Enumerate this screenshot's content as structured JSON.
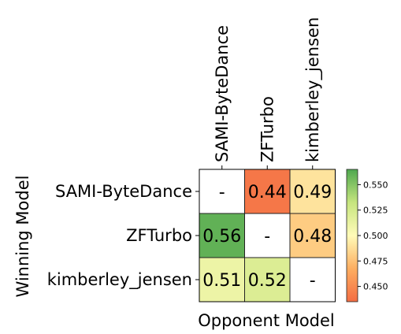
{
  "chart_data": {
    "type": "heatmap",
    "xlabel": "Opponent Model",
    "ylabel": "Winning Model",
    "x_categories": [
      "SAMI-ByteDance",
      "ZFTurbo",
      "kimberley_jensen"
    ],
    "y_categories": [
      "SAMI-ByteDance",
      "ZFTurbo",
      "kimberley_jensen"
    ],
    "values": [
      [
        null,
        0.44,
        0.49
      ],
      [
        0.56,
        null,
        0.48
      ],
      [
        0.51,
        0.52,
        null
      ]
    ],
    "cell_labels": [
      [
        "-",
        "0.44",
        "0.49"
      ],
      [
        "0.56",
        "-",
        "0.48"
      ],
      [
        "0.51",
        "0.52",
        "-"
      ]
    ],
    "colorbar": {
      "min": 0.435,
      "max": 0.565,
      "ticks": [
        0.45,
        0.475,
        0.5,
        0.525,
        0.55
      ],
      "tick_labels": [
        "0.450",
        "0.475",
        "0.500",
        "0.525",
        "0.550"
      ],
      "colormap": "RdYlGn"
    },
    "colors": {
      "diagonal": "#ffffff",
      "grid": "#222222"
    }
  }
}
